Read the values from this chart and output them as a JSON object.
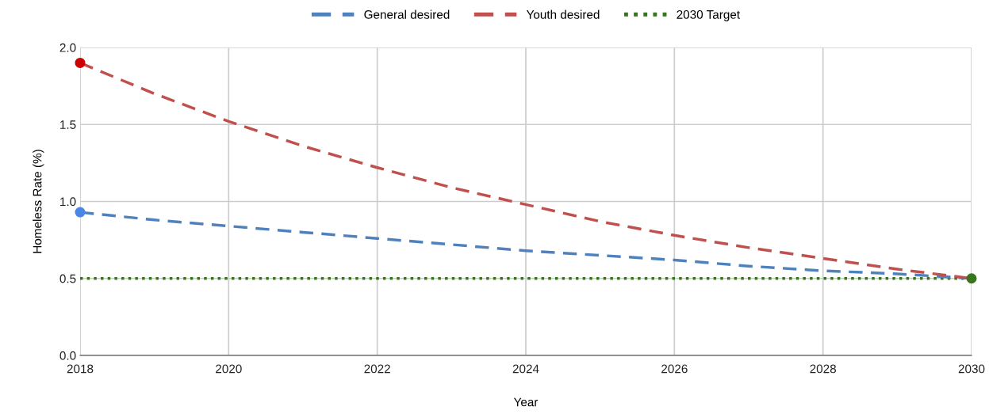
{
  "chart_data": {
    "type": "line",
    "xlabel": "Year",
    "ylabel": "Homeless Rate (%)",
    "x": [
      2018,
      2019,
      2020,
      2021,
      2022,
      2023,
      2024,
      2025,
      2026,
      2027,
      2028,
      2029,
      2030
    ],
    "series": [
      {
        "name": "General desired",
        "color": "#4f81bd",
        "line_style": "dashed",
        "values": [
          0.93,
          0.88,
          0.84,
          0.8,
          0.76,
          0.72,
          0.68,
          0.65,
          0.62,
          0.58,
          0.55,
          0.53,
          0.5
        ]
      },
      {
        "name": "Youth desired",
        "color": "#c0504d",
        "line_style": "dashed",
        "values": [
          1.9,
          1.7,
          1.52,
          1.36,
          1.22,
          1.09,
          0.98,
          0.87,
          0.78,
          0.7,
          0.63,
          0.56,
          0.5
        ]
      },
      {
        "type": "scatter",
        "marker": "circle",
        "color": "#4a86e8",
        "values": [
          0.93,
          null,
          null,
          null,
          null,
          null,
          null,
          null,
          null,
          null,
          null,
          null,
          null
        ]
      },
      {
        "type": "scatter",
        "marker": "circle",
        "color": "#cc0000",
        "values": [
          1.9,
          null,
          null,
          null,
          null,
          null,
          null,
          null,
          null,
          null,
          null,
          null,
          null
        ]
      },
      {
        "type": "scatter",
        "marker": "circle",
        "color": "#38761d",
        "values": [
          null,
          null,
          null,
          null,
          null,
          null,
          null,
          null,
          null,
          null,
          null,
          null,
          0.5
        ]
      }
    ],
    "xlim": [
      2018,
      2030
    ],
    "xticks": [
      2018,
      2020,
      2022,
      2024,
      2026,
      2028,
      2030
    ],
    "ylim": [
      0,
      2.0
    ],
    "yticks": [
      {
        "value": 0,
        "label": "0.0"
      },
      {
        "value": 0.5,
        "label": "0.5"
      },
      {
        "value": 1.0,
        "label": "1.0"
      },
      {
        "value": 1.5,
        "label": "1.5"
      },
      {
        "value": 2.0,
        "label": "2.0"
      }
    ],
    "ref_lines": [
      {
        "axis": "y",
        "value": 0.5,
        "label": "2030 Target",
        "color": "#38761d",
        "line_style": "dotted"
      }
    ],
    "grid": true,
    "legend": "top"
  }
}
